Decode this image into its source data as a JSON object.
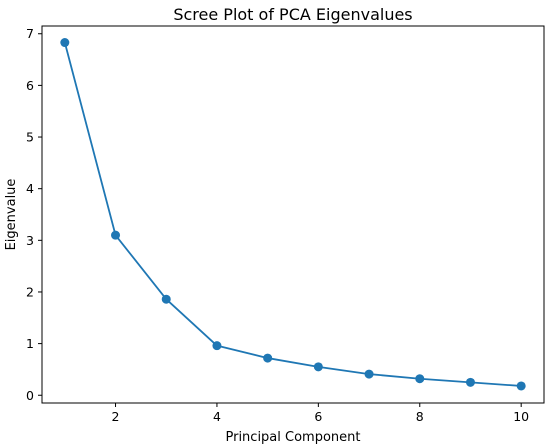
{
  "chart_data": {
    "type": "line",
    "title": "Scree Plot of PCA Eigenvalues",
    "xlabel": "Principal Component",
    "ylabel": "Eigenvalue",
    "x": [
      1,
      2,
      3,
      4,
      5,
      6,
      7,
      8,
      9,
      10
    ],
    "series": [
      {
        "values": [
          6.83,
          3.1,
          1.86,
          0.96,
          0.72,
          0.55,
          0.41,
          0.32,
          0.25,
          0.18
        ],
        "color": "#1f77b4",
        "marker": "circle"
      }
    ],
    "xlim": [
      0.55,
      10.45
    ],
    "ylim": [
      -0.15,
      7.15
    ],
    "xticks": [
      2,
      4,
      6,
      8,
      10
    ],
    "yticks": [
      0,
      1,
      2,
      3,
      4,
      5,
      6,
      7
    ],
    "grid": false,
    "legend": false
  }
}
